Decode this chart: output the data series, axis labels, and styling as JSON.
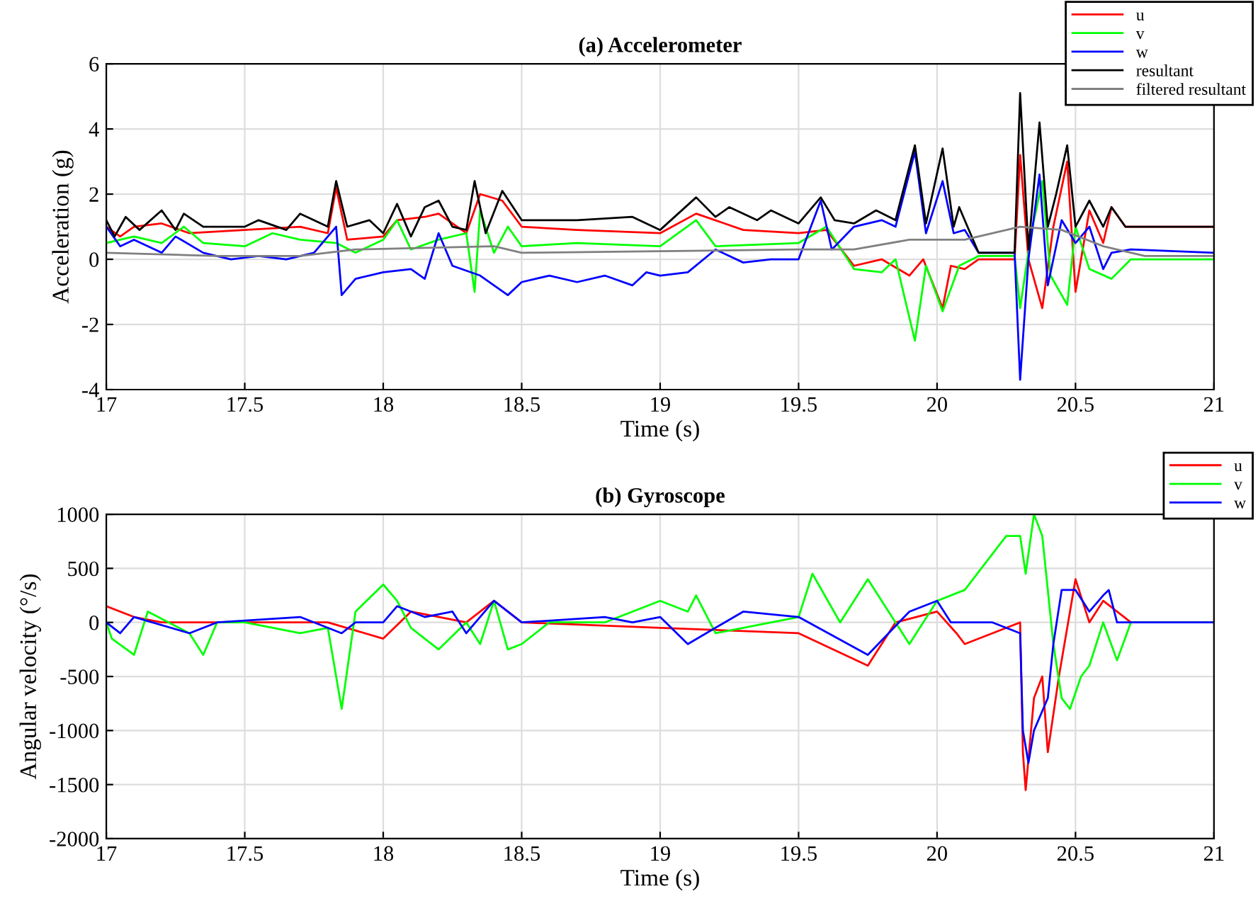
{
  "chart_data": [
    {
      "type": "line",
      "title": "(a) Accelerometer",
      "xlabel": "Time (s)",
      "ylabel": "Acceleration (g)",
      "xlim": [
        17,
        21
      ],
      "xticks": [
        17,
        17.5,
        18,
        18.5,
        19,
        19.5,
        20,
        20.5,
        21
      ],
      "ylim": [
        -4,
        6
      ],
      "yticks": [
        -4,
        -2,
        0,
        2,
        4,
        6
      ],
      "grid": true,
      "legend": "top right",
      "series": [
        {
          "name": "u",
          "color": "#ff0000",
          "x": [
            17,
            17.05,
            17.1,
            17.2,
            17.3,
            17.5,
            17.7,
            17.8,
            17.83,
            17.87,
            18.0,
            18.05,
            18.15,
            18.2,
            18.3,
            18.35,
            18.43,
            18.5,
            18.7,
            19.0,
            19.13,
            19.3,
            19.5,
            19.6,
            19.7,
            19.8,
            19.9,
            19.95,
            20.02,
            20.05,
            20.1,
            20.15,
            20.28,
            20.3,
            20.33,
            20.38,
            20.42,
            20.47,
            20.5,
            20.55,
            20.6,
            20.63,
            20.68,
            21
          ],
          "values": [
            1.0,
            0.7,
            1.0,
            1.1,
            0.8,
            0.9,
            1.0,
            0.8,
            2.2,
            0.6,
            0.7,
            1.2,
            1.3,
            1.4,
            0.8,
            2.0,
            1.8,
            1.0,
            0.9,
            0.8,
            1.4,
            0.9,
            0.8,
            0.9,
            -0.2,
            0.0,
            -0.5,
            0.0,
            -1.5,
            -0.2,
            -0.3,
            0.0,
            0.0,
            3.2,
            0.0,
            -1.5,
            1.0,
            3.0,
            -1.0,
            1.5,
            0.5,
            1.6,
            1.0,
            1.0
          ]
        },
        {
          "name": "v",
          "color": "#00ff00",
          "x": [
            17,
            17.1,
            17.2,
            17.28,
            17.35,
            17.5,
            17.6,
            17.7,
            17.83,
            17.9,
            18.0,
            18.05,
            18.1,
            18.2,
            18.3,
            18.33,
            18.35,
            18.4,
            18.45,
            18.5,
            18.7,
            19.0,
            19.13,
            19.2,
            19.5,
            19.6,
            19.7,
            19.8,
            19.85,
            19.92,
            19.96,
            20.02,
            20.08,
            20.15,
            20.28,
            20.3,
            20.34,
            20.38,
            20.41,
            20.47,
            20.5,
            20.55,
            20.63,
            20.7,
            21
          ],
          "values": [
            0.5,
            0.7,
            0.5,
            1.0,
            0.5,
            0.4,
            0.8,
            0.6,
            0.5,
            0.2,
            0.6,
            1.2,
            0.3,
            0.6,
            0.8,
            -1.0,
            1.5,
            0.2,
            1.0,
            0.4,
            0.5,
            0.4,
            1.2,
            0.4,
            0.5,
            1.0,
            -0.3,
            -0.4,
            0.0,
            -2.5,
            -0.2,
            -1.6,
            -0.2,
            0.1,
            0.1,
            -1.5,
            0.8,
            2.4,
            -0.5,
            -1.4,
            1.0,
            -0.3,
            -0.6,
            0.0,
            0.0
          ]
        },
        {
          "name": "w",
          "color": "#0000ff",
          "x": [
            17,
            17.05,
            17.1,
            17.2,
            17.25,
            17.35,
            17.45,
            17.55,
            17.65,
            17.75,
            17.83,
            17.85,
            17.9,
            18.0,
            18.1,
            18.15,
            18.2,
            18.25,
            18.35,
            18.45,
            18.5,
            18.6,
            18.7,
            18.8,
            18.9,
            18.95,
            19.0,
            19.1,
            19.2,
            19.3,
            19.4,
            19.5,
            19.58,
            19.62,
            19.7,
            19.8,
            19.85,
            19.92,
            19.96,
            20.02,
            20.06,
            20.1,
            20.15,
            20.28,
            20.3,
            20.33,
            20.37,
            20.4,
            20.45,
            20.5,
            20.55,
            20.6,
            20.63,
            20.7,
            21
          ],
          "values": [
            1.0,
            0.4,
            0.6,
            0.2,
            0.7,
            0.2,
            0.0,
            0.1,
            0.0,
            0.2,
            1.0,
            -1.1,
            -0.6,
            -0.4,
            -0.3,
            -0.6,
            0.8,
            -0.2,
            -0.5,
            -1.1,
            -0.7,
            -0.5,
            -0.7,
            -0.5,
            -0.8,
            -0.4,
            -0.5,
            -0.4,
            0.3,
            -0.1,
            0.0,
            0.0,
            1.8,
            0.3,
            1.0,
            1.2,
            1.0,
            3.3,
            0.8,
            2.4,
            0.8,
            0.9,
            0.2,
            0.2,
            -3.7,
            0.0,
            2.6,
            -0.8,
            1.2,
            0.5,
            1.0,
            -0.3,
            0.2,
            0.3,
            0.2
          ]
        },
        {
          "name": "resultant",
          "color": "#000000",
          "x": [
            17,
            17.03,
            17.07,
            17.12,
            17.2,
            17.25,
            17.28,
            17.35,
            17.5,
            17.55,
            17.65,
            17.7,
            17.8,
            17.83,
            17.87,
            17.95,
            18.0,
            18.05,
            18.1,
            18.15,
            18.2,
            18.25,
            18.3,
            18.33,
            18.37,
            18.43,
            18.5,
            18.7,
            18.9,
            19.0,
            19.13,
            19.2,
            19.25,
            19.35,
            19.4,
            19.5,
            19.58,
            19.63,
            19.7,
            19.78,
            19.85,
            19.92,
            19.96,
            20.02,
            20.06,
            20.08,
            20.12,
            20.15,
            20.28,
            20.3,
            20.33,
            20.37,
            20.4,
            20.43,
            20.47,
            20.5,
            20.55,
            20.6,
            20.63,
            20.68,
            20.8,
            21
          ],
          "values": [
            1.2,
            0.7,
            1.3,
            0.9,
            1.5,
            0.9,
            1.4,
            1.0,
            1.0,
            1.2,
            0.9,
            1.4,
            1.0,
            2.4,
            1.0,
            1.2,
            0.8,
            1.7,
            0.7,
            1.6,
            1.8,
            1.0,
            0.9,
            2.4,
            0.8,
            2.1,
            1.2,
            1.2,
            1.3,
            0.9,
            1.9,
            1.3,
            1.6,
            1.2,
            1.5,
            1.1,
            1.9,
            1.2,
            1.1,
            1.5,
            1.2,
            3.5,
            1.1,
            3.4,
            1.0,
            1.6,
            0.8,
            0.2,
            0.2,
            5.1,
            0.3,
            4.2,
            1.0,
            2.0,
            3.5,
            1.0,
            1.8,
            1.0,
            1.6,
            1.0,
            1.0,
            1.0
          ]
        },
        {
          "name": "filtered resultant",
          "color": "#808080",
          "x": [
            17,
            17.4,
            17.7,
            17.9,
            18.4,
            18.5,
            19.5,
            19.7,
            19.9,
            20.1,
            20.3,
            20.45,
            20.6,
            20.75,
            21
          ],
          "values": [
            0.2,
            0.1,
            0.1,
            0.3,
            0.4,
            0.2,
            0.3,
            0.3,
            0.6,
            0.6,
            1.0,
            0.9,
            0.4,
            0.1,
            0.1
          ]
        }
      ]
    },
    {
      "type": "line",
      "title": "(b) Gyroscope",
      "xlabel": "Time (s)",
      "ylabel": "Angular velocity (°/s)",
      "xlim": [
        17,
        21
      ],
      "xticks": [
        17,
        17.5,
        18,
        18.5,
        19,
        19.5,
        20,
        20.5,
        21
      ],
      "ylim": [
        -2000,
        1000
      ],
      "yticks": [
        -2000,
        -1500,
        -1000,
        -500,
        0,
        500,
        1000
      ],
      "grid": true,
      "legend": "top right",
      "series": [
        {
          "name": "u",
          "color": "#ff0000",
          "x": [
            17,
            17.1,
            17.2,
            17.5,
            17.8,
            18.0,
            18.1,
            18.3,
            18.4,
            18.5,
            19.0,
            19.5,
            19.75,
            19.85,
            20.0,
            20.07,
            20.1,
            20.3,
            20.31,
            20.32,
            20.35,
            20.38,
            20.4,
            20.44,
            20.5,
            20.55,
            20.6,
            20.7,
            21
          ],
          "values": [
            150,
            50,
            0,
            0,
            0,
            -150,
            100,
            0,
            200,
            0,
            -50,
            -100,
            -400,
            0,
            100,
            -100,
            -200,
            0,
            -1200,
            -1550,
            -700,
            -500,
            -1200,
            -500,
            400,
            0,
            200,
            0,
            0
          ]
        },
        {
          "name": "v",
          "color": "#00ff00",
          "x": [
            17,
            17.02,
            17.1,
            17.15,
            17.3,
            17.35,
            17.4,
            17.5,
            17.7,
            17.8,
            17.85,
            17.9,
            18.0,
            18.05,
            18.1,
            18.2,
            18.3,
            18.35,
            18.4,
            18.45,
            18.5,
            18.6,
            18.8,
            18.9,
            19.0,
            19.1,
            19.13,
            19.2,
            19.5,
            19.55,
            19.65,
            19.75,
            19.8,
            19.9,
            20.0,
            20.1,
            20.25,
            20.3,
            20.32,
            20.35,
            20.38,
            20.42,
            20.45,
            20.48,
            20.52,
            20.55,
            20.6,
            20.65,
            20.7,
            21
          ],
          "values": [
            0,
            -150,
            -300,
            100,
            -100,
            -300,
            0,
            0,
            -100,
            -50,
            -800,
            100,
            350,
            200,
            -50,
            -250,
            0,
            -200,
            200,
            -250,
            -200,
            0,
            0,
            100,
            200,
            100,
            250,
            -100,
            50,
            450,
            0,
            400,
            200,
            -200,
            200,
            300,
            800,
            800,
            450,
            1000,
            800,
            -200,
            -700,
            -800,
            -500,
            -400,
            0,
            -350,
            0,
            0
          ]
        },
        {
          "name": "w",
          "color": "#0000ff",
          "x": [
            17,
            17.05,
            17.1,
            17.3,
            17.4,
            17.7,
            17.85,
            17.9,
            18.0,
            18.05,
            18.15,
            18.25,
            18.3,
            18.4,
            18.5,
            18.8,
            18.9,
            19.0,
            19.1,
            19.3,
            19.5,
            19.75,
            19.9,
            20.0,
            20.05,
            20.2,
            20.3,
            20.31,
            20.33,
            20.35,
            20.4,
            20.42,
            20.45,
            20.5,
            20.55,
            20.6,
            20.62,
            20.65,
            20.7,
            21
          ],
          "values": [
            0,
            -100,
            50,
            -100,
            0,
            50,
            -100,
            0,
            0,
            150,
            50,
            100,
            -100,
            200,
            0,
            50,
            0,
            50,
            -200,
            100,
            50,
            -300,
            100,
            200,
            0,
            0,
            -100,
            -1000,
            -1300,
            -1000,
            -700,
            -200,
            300,
            300,
            100,
            250,
            300,
            0,
            0,
            0
          ]
        }
      ]
    }
  ]
}
